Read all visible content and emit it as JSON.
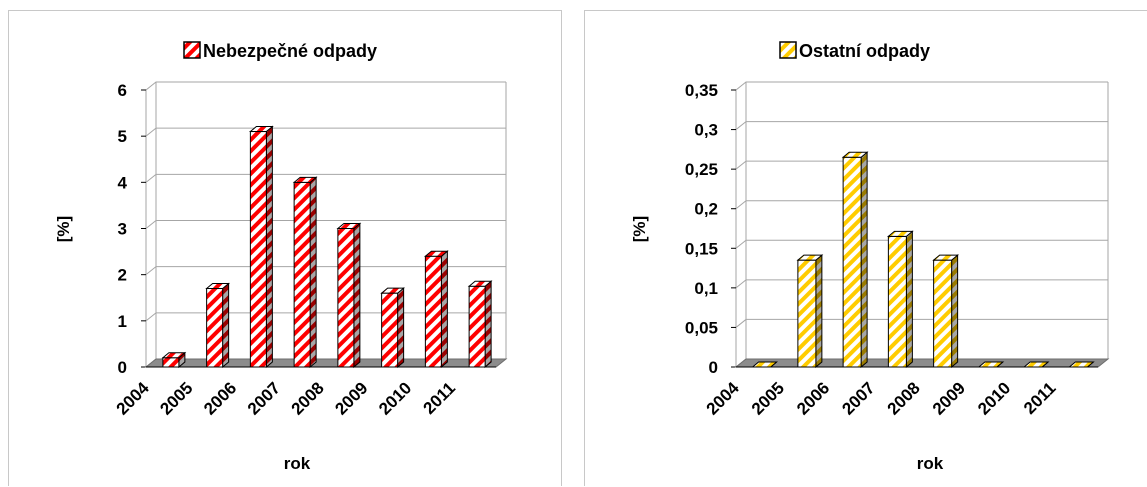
{
  "colors": {
    "hazardous_primary": "#ff0000",
    "other_primary": "#ffcc00",
    "stripe_light": "#ffffff",
    "grid": "#a6a6a6",
    "floor": "#8c8c8c",
    "bar_outline": "#000000",
    "panel_border": "#c8c8c8"
  },
  "chart_data": [
    {
      "type": "bar",
      "title": "Nebezpečné odpady",
      "legend": {
        "placement": "top",
        "label": "Nebezpečné odpady"
      },
      "xlabel": "rok",
      "ylabel": "[%]",
      "categories": [
        "2004",
        "2005",
        "2006",
        "2007",
        "2008",
        "2009",
        "2010",
        "2011"
      ],
      "series": [
        {
          "name": "Nebezpečné odpady",
          "values": [
            0.2,
            1.7,
            5.1,
            4.0,
            3.0,
            1.6,
            2.4,
            1.75
          ]
        }
      ],
      "ylim": [
        0,
        6
      ],
      "yticks": [
        "0",
        "1",
        "2",
        "3",
        "4",
        "5",
        "6"
      ],
      "grid": true,
      "pattern": "red-white diagonal stripes",
      "three_d": true
    },
    {
      "type": "bar",
      "title": "Ostatní odpady",
      "legend": {
        "placement": "top",
        "label": "Ostatní odpady"
      },
      "xlabel": "rok",
      "ylabel": "[%]",
      "categories": [
        "2004",
        "2005",
        "2006",
        "2007",
        "2008",
        "2009",
        "2010",
        "2011"
      ],
      "series": [
        {
          "name": "Ostatní odpady",
          "values": [
            0,
            0.135,
            0.265,
            0.165,
            0.135,
            0,
            0,
            0
          ]
        }
      ],
      "ylim": [
        0,
        0.35
      ],
      "yticks": [
        "0",
        "0,05",
        "0,1",
        "0,15",
        "0,2",
        "0,25",
        "0,3",
        "0,35"
      ],
      "grid": true,
      "pattern": "yellow-white diagonal stripes",
      "three_d": true
    }
  ]
}
